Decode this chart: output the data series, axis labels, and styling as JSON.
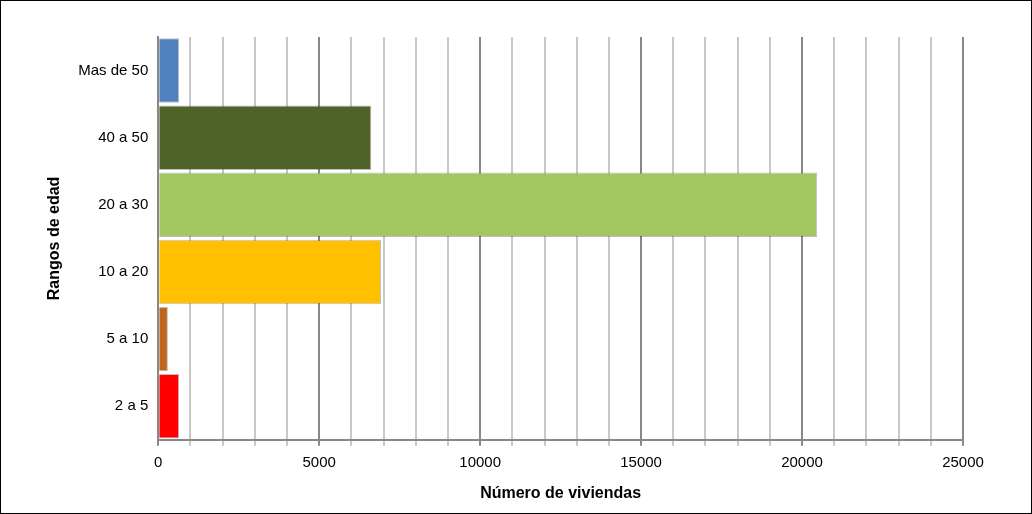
{
  "chart_data": {
    "type": "bar",
    "orientation": "horizontal",
    "xlabel": "Número de viviendas",
    "ylabel": "Rangos de edad",
    "categories": [
      "Mas de 50",
      "40 a 50",
      "20 a 30",
      "10 a 20",
      "5 a 10",
      "2 a 5"
    ],
    "values": [
      650,
      6620,
      20470,
      6920,
      300,
      650
    ],
    "colors": [
      "#4f81bd",
      "#4f6228",
      "#a2c660",
      "#ffc000",
      "#c0661a",
      "#ff0000"
    ],
    "xlim": [
      0,
      25000
    ],
    "xticks": [
      0,
      {
        "value": 1000,
        "label": null
      },
      {
        "value": 2000,
        "label": null
      },
      {
        "value": 3000,
        "label": null
      },
      {
        "value": 4000,
        "label": null
      },
      5000,
      {
        "value": 6000,
        "label": null
      },
      {
        "value": 7000,
        "label": null
      },
      {
        "value": 8000,
        "label": null
      },
      {
        "value": 9000,
        "label": null
      },
      10000,
      {
        "value": 11000,
        "label": null
      },
      {
        "value": 12000,
        "label": null
      },
      {
        "value": 13000,
        "label": null
      },
      {
        "value": 14000,
        "label": null
      },
      15000,
      {
        "value": 16000,
        "label": null
      },
      {
        "value": 17000,
        "label": null
      },
      {
        "value": 18000,
        "label": null
      },
      {
        "value": 19000,
        "label": null
      },
      20000,
      {
        "value": 21000,
        "label": null
      },
      {
        "value": 22000,
        "label": null
      },
      {
        "value": 23000,
        "label": null
      },
      {
        "value": 24000,
        "label": null
      },
      25000
    ],
    "grid": "x",
    "legend": false
  }
}
